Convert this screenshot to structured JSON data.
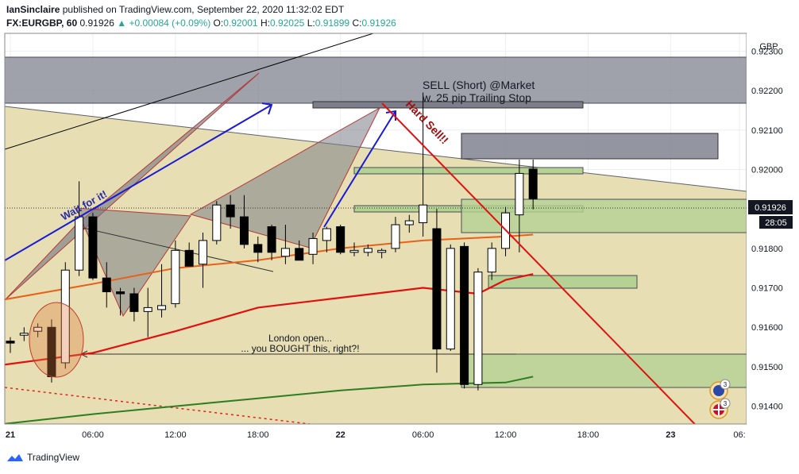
{
  "header": {
    "publisher": "IanSinclaire",
    "published_text": "published on TradingView.com, September 22, 2020 11:32:02 EDT",
    "symbol": "FX:EURGBP, 60",
    "last": "0.91926",
    "change": "+0.00084 (+0.09%)",
    "o_label": "O:",
    "o_val": "0.92001",
    "h_label": "H:",
    "h_val": "0.92025",
    "l_label": "L:",
    "l_val": "0.91899",
    "c_label": "C:",
    "c_val": "0.91926"
  },
  "footer": {
    "brand": "TradingView"
  },
  "chart_data": {
    "type": "candlestick",
    "currency_label": "GBP",
    "ylim": [
      0.91355,
      0.92345
    ],
    "y_ticks": [
      0.914,
      0.915,
      0.916,
      0.917,
      0.918,
      0.919,
      0.92,
      0.921,
      0.922,
      0.923
    ],
    "y_tick_labels": [
      "0.91400",
      "0.91500",
      "0.91600",
      "0.91700",
      "0.91800",
      "0.91900",
      "0.92000",
      "0.92100",
      "0.92200",
      "0.92300"
    ],
    "x_range_hours": [
      0,
      53
    ],
    "x_ticks": [
      {
        "h": 0,
        "label": "21",
        "bold": true
      },
      {
        "h": 6,
        "label": "06:00"
      },
      {
        "h": 12,
        "label": "12:00"
      },
      {
        "h": 18,
        "label": "18:00"
      },
      {
        "h": 24,
        "label": "22",
        "bold": true
      },
      {
        "h": 30,
        "label": "06:00"
      },
      {
        "h": 36,
        "label": "12:00"
      },
      {
        "h": 42,
        "label": "18:00"
      },
      {
        "h": 48,
        "label": "23",
        "bold": true
      },
      {
        "h": 53,
        "label": "06:"
      }
    ],
    "current_price": "0.91926",
    "countdown": "28:05",
    "candles": [
      {
        "t": 0,
        "o": 0.91565,
        "h": 0.91575,
        "l": 0.91535,
        "c": 0.9156
      },
      {
        "t": 1,
        "o": 0.9158,
        "h": 0.916,
        "l": 0.91565,
        "c": 0.91585
      },
      {
        "t": 2,
        "o": 0.9159,
        "h": 0.9161,
        "l": 0.91575,
        "c": 0.916
      },
      {
        "t": 3,
        "o": 0.916,
        "h": 0.9162,
        "l": 0.9146,
        "c": 0.91475
      },
      {
        "t": 4,
        "o": 0.9151,
        "h": 0.91765,
        "l": 0.91495,
        "c": 0.91745
      },
      {
        "t": 5,
        "o": 0.91745,
        "h": 0.9197,
        "l": 0.9173,
        "c": 0.9188
      },
      {
        "t": 6,
        "o": 0.9188,
        "h": 0.9189,
        "l": 0.9172,
        "c": 0.91725
      },
      {
        "t": 7,
        "o": 0.91725,
        "h": 0.91765,
        "l": 0.9165,
        "c": 0.9169
      },
      {
        "t": 8,
        "o": 0.9169,
        "h": 0.917,
        "l": 0.9163,
        "c": 0.91685
      },
      {
        "t": 9,
        "o": 0.91685,
        "h": 0.917,
        "l": 0.91615,
        "c": 0.9164
      },
      {
        "t": 10,
        "o": 0.9164,
        "h": 0.917,
        "l": 0.91575,
        "c": 0.9165
      },
      {
        "t": 11,
        "o": 0.91645,
        "h": 0.9176,
        "l": 0.91625,
        "c": 0.91655
      },
      {
        "t": 12,
        "o": 0.9166,
        "h": 0.9182,
        "l": 0.9165,
        "c": 0.91795
      },
      {
        "t": 13,
        "o": 0.91795,
        "h": 0.91815,
        "l": 0.91755,
        "c": 0.91755
      },
      {
        "t": 14,
        "o": 0.9176,
        "h": 0.9184,
        "l": 0.917,
        "c": 0.9182
      },
      {
        "t": 15,
        "o": 0.9182,
        "h": 0.9192,
        "l": 0.9181,
        "c": 0.9191
      },
      {
        "t": 16,
        "o": 0.9191,
        "h": 0.91935,
        "l": 0.9185,
        "c": 0.9188
      },
      {
        "t": 17,
        "o": 0.9188,
        "h": 0.91935,
        "l": 0.918,
        "c": 0.9181
      },
      {
        "t": 18,
        "o": 0.9181,
        "h": 0.9183,
        "l": 0.91765,
        "c": 0.9179
      },
      {
        "t": 19,
        "o": 0.91855,
        "h": 0.9186,
        "l": 0.9177,
        "c": 0.9179
      },
      {
        "t": 20,
        "o": 0.9178,
        "h": 0.9186,
        "l": 0.9176,
        "c": 0.918
      },
      {
        "t": 21,
        "o": 0.918,
        "h": 0.9182,
        "l": 0.9177,
        "c": 0.9177
      },
      {
        "t": 22,
        "o": 0.91785,
        "h": 0.9184,
        "l": 0.9176,
        "c": 0.91825
      },
      {
        "t": 23,
        "o": 0.9182,
        "h": 0.91855,
        "l": 0.9179,
        "c": 0.9185
      },
      {
        "t": 24,
        "o": 0.91855,
        "h": 0.9186,
        "l": 0.91785,
        "c": 0.9179
      },
      {
        "t": 25,
        "o": 0.9179,
        "h": 0.91815,
        "l": 0.9178,
        "c": 0.91795
      },
      {
        "t": 26,
        "o": 0.9179,
        "h": 0.9181,
        "l": 0.9178,
        "c": 0.918
      },
      {
        "t": 27,
        "o": 0.9179,
        "h": 0.918,
        "l": 0.91775,
        "c": 0.91795
      },
      {
        "t": 28,
        "o": 0.918,
        "h": 0.9188,
        "l": 0.9179,
        "c": 0.9186
      },
      {
        "t": 29,
        "o": 0.9186,
        "h": 0.91885,
        "l": 0.9184,
        "c": 0.9187
      },
      {
        "t": 30,
        "o": 0.91865,
        "h": 0.92195,
        "l": 0.9183,
        "c": 0.9191
      },
      {
        "t": 31,
        "o": 0.9185,
        "h": 0.919,
        "l": 0.91485,
        "c": 0.91545
      },
      {
        "t": 32,
        "o": 0.91545,
        "h": 0.9181,
        "l": 0.9154,
        "c": 0.918
      },
      {
        "t": 33,
        "o": 0.91805,
        "h": 0.91815,
        "l": 0.91445,
        "c": 0.91455
      },
      {
        "t": 34,
        "o": 0.91455,
        "h": 0.9175,
        "l": 0.9144,
        "c": 0.9174
      },
      {
        "t": 35,
        "o": 0.9174,
        "h": 0.91815,
        "l": 0.9172,
        "c": 0.918
      },
      {
        "t": 36,
        "o": 0.918,
        "h": 0.91905,
        "l": 0.9178,
        "c": 0.9189
      },
      {
        "t": 37,
        "o": 0.91885,
        "h": 0.92025,
        "l": 0.9179,
        "c": 0.9199
      },
      {
        "t": 38,
        "o": 0.92001,
        "h": 0.92025,
        "l": 0.91899,
        "c": 0.91926
      }
    ],
    "ma_orange": [
      [
        -0.5,
        0.9167
      ],
      [
        6,
        0.9171
      ],
      [
        12,
        0.9175
      ],
      [
        18,
        0.9177
      ],
      [
        24,
        0.918
      ],
      [
        30,
        0.9182
      ],
      [
        36,
        0.9183
      ],
      [
        38,
        0.91835
      ]
    ],
    "ma_red": [
      [
        -0.5,
        0.91505
      ],
      [
        6,
        0.91535
      ],
      [
        12,
        0.9159
      ],
      [
        18,
        0.9165
      ],
      [
        24,
        0.91675
      ],
      [
        30,
        0.917
      ],
      [
        34,
        0.91685
      ],
      [
        36,
        0.9172
      ],
      [
        38,
        0.91735
      ]
    ],
    "ma_green": [
      [
        -0.5,
        0.91355
      ],
      [
        6,
        0.9138
      ],
      [
        12,
        0.914
      ],
      [
        18,
        0.9142
      ],
      [
        24,
        0.9144
      ],
      [
        30,
        0.91455
      ],
      [
        36,
        0.9146
      ],
      [
        38,
        0.91475
      ]
    ],
    "annotations": {
      "sell_line1": "SELL (Short) @Market",
      "sell_line2": "w. 25 pip Trailing Stop",
      "hard_sell": "Hard Sell!!",
      "wait": "Wait for it!",
      "london_line1": "London open...",
      "london_line2": "... you BOUGHT this, right?!"
    },
    "event_badges": [
      "3",
      "3"
    ]
  }
}
